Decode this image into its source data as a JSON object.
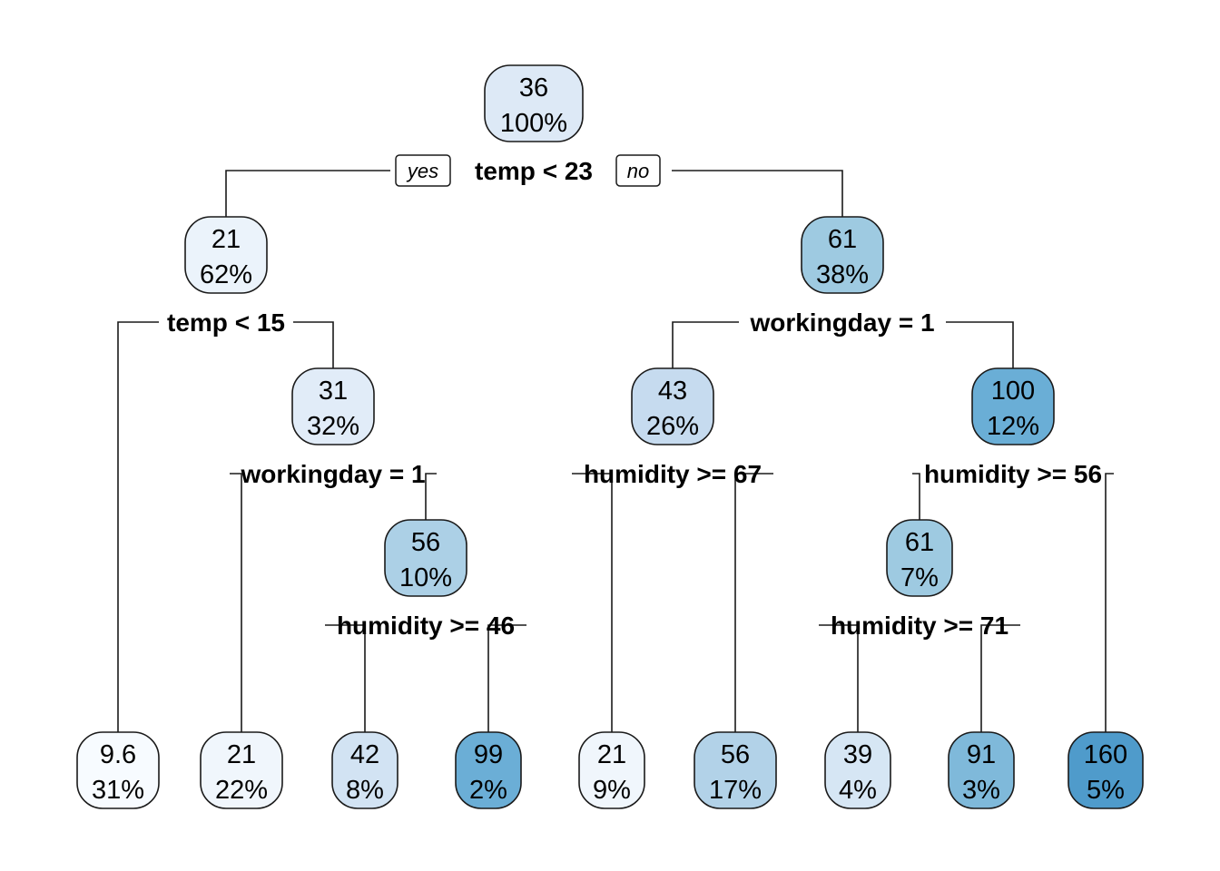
{
  "branch_labels": {
    "yes": "yes",
    "no": "no"
  },
  "nodes": [
    {
      "id": "n1",
      "value": "36",
      "pct": "100%",
      "fill": "#dde9f6",
      "split": "temp < 23"
    },
    {
      "id": "n2",
      "value": "21",
      "pct": "62%",
      "fill": "#ebf3fb",
      "split": "temp < 15"
    },
    {
      "id": "n3",
      "value": "61",
      "pct": "38%",
      "fill": "#9ecae1",
      "split": "workingday = 1"
    },
    {
      "id": "n5",
      "value": "31",
      "pct": "32%",
      "fill": "#e1ecf8",
      "split": "workingday = 1"
    },
    {
      "id": "n6",
      "value": "43",
      "pct": "26%",
      "fill": "#c6dbef",
      "split": "humidity >= 67"
    },
    {
      "id": "n7",
      "value": "100",
      "pct": "12%",
      "fill": "#6aaed6",
      "split": "humidity >= 56"
    },
    {
      "id": "n11",
      "value": "56",
      "pct": "10%",
      "fill": "#acd0e6",
      "split": "humidity >= 46"
    },
    {
      "id": "n14",
      "value": "61",
      "pct": "7%",
      "fill": "#9ecae1",
      "split": "humidity >= 71"
    },
    {
      "id": "n4",
      "value": "9.6",
      "pct": "31%",
      "fill": "#f7fbff",
      "split": ""
    },
    {
      "id": "n10",
      "value": "21",
      "pct": "22%",
      "fill": "#f0f6fc",
      "split": ""
    },
    {
      "id": "n22",
      "value": "42",
      "pct": "8%",
      "fill": "#d2e3f3",
      "split": ""
    },
    {
      "id": "n23",
      "value": "99",
      "pct": "2%",
      "fill": "#6baed6",
      "split": ""
    },
    {
      "id": "n12",
      "value": "21",
      "pct": "9%",
      "fill": "#f0f6fc",
      "split": ""
    },
    {
      "id": "n13",
      "value": "56",
      "pct": "17%",
      "fill": "#b2d2e8",
      "split": ""
    },
    {
      "id": "n28",
      "value": "39",
      "pct": "4%",
      "fill": "#d6e6f4",
      "split": ""
    },
    {
      "id": "n29",
      "value": "91",
      "pct": "3%",
      "fill": "#7fb9da",
      "split": ""
    },
    {
      "id": "n15",
      "value": "160",
      "pct": "5%",
      "fill": "#4f9bcb",
      "split": ""
    }
  ]
}
